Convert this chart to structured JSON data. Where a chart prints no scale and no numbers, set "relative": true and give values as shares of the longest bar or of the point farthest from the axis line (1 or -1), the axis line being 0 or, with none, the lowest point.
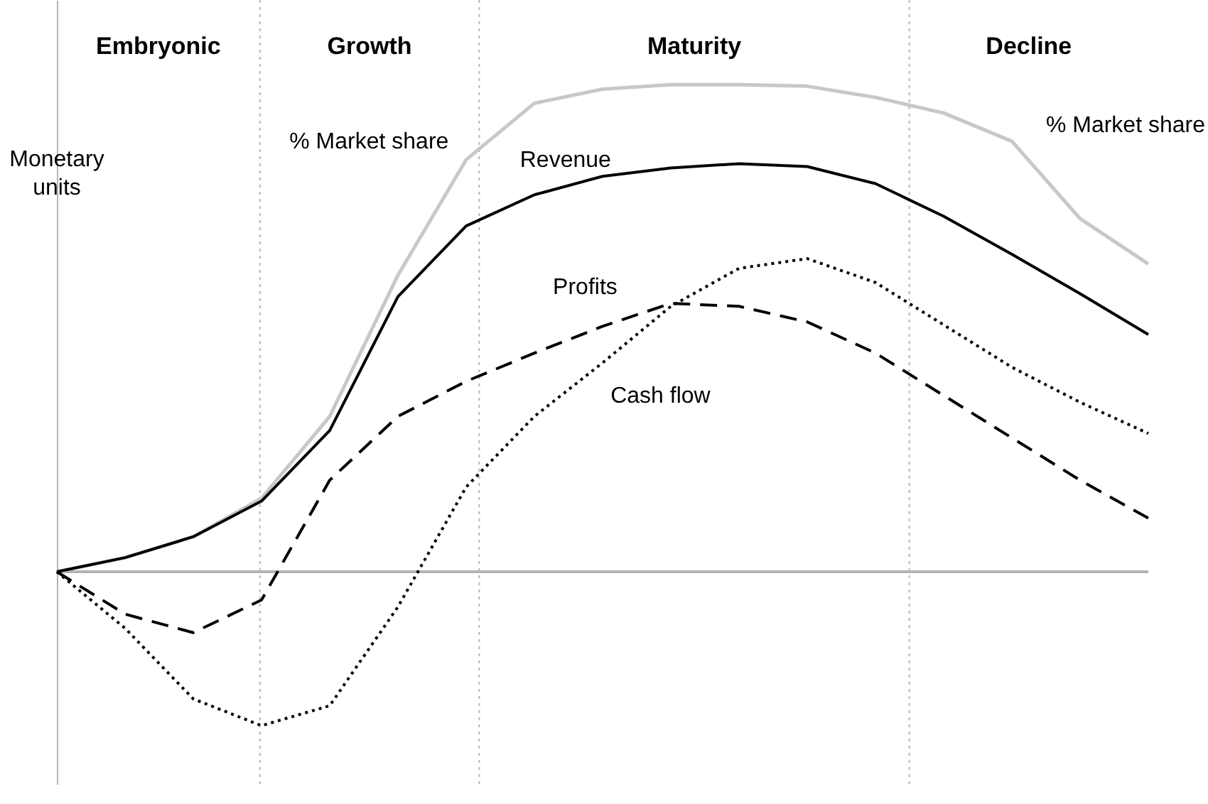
{
  "chart_data": {
    "type": "line",
    "relative": true,
    "ylabel": "Monetary units",
    "y2label": "% Market share",
    "categories": [
      null,
      null,
      null,
      null,
      null,
      null,
      null,
      null,
      null,
      null,
      null,
      null,
      null,
      null,
      null,
      null,
      null
    ],
    "series": [
      {
        "name": "% Market share",
        "color": "#c8c8c8",
        "line_style": "solid",
        "values": [
          0,
          0.029,
          0.072,
          0.151,
          0.319,
          0.609,
          0.846,
          0.962,
          0.991,
          1,
          1,
          0.997,
          0.974,
          0.942,
          0.884,
          0.725,
          0.632
        ]
      },
      {
        "name": "Revenue",
        "color": "#000000",
        "line_style": "solid",
        "values": [
          0,
          0.029,
          0.072,
          0.145,
          0.29,
          0.565,
          0.71,
          0.774,
          0.812,
          0.829,
          0.838,
          0.832,
          0.797,
          0.73,
          0.652,
          0.571,
          0.487
        ]
      },
      {
        "name": "Profits",
        "color": "#000000",
        "line_style": "dashed",
        "values": [
          0,
          -0.087,
          -0.125,
          -0.058,
          0.188,
          0.319,
          0.391,
          0.449,
          0.504,
          0.551,
          0.545,
          0.513,
          0.449,
          0.362,
          0.275,
          0.188,
          0.11
        ]
      },
      {
        "name": "Cash flow",
        "color": "#000000",
        "line_style": "dotted",
        "values": [
          0,
          -0.116,
          -0.261,
          -0.316,
          -0.275,
          -0.072,
          0.174,
          0.319,
          0.429,
          0.545,
          0.623,
          0.643,
          0.594,
          0.507,
          0.42,
          0.348,
          0.284
        ]
      }
    ],
    "annotations": [
      "Embryonic",
      "Growth",
      "Maturity",
      "Decline"
    ]
  }
}
